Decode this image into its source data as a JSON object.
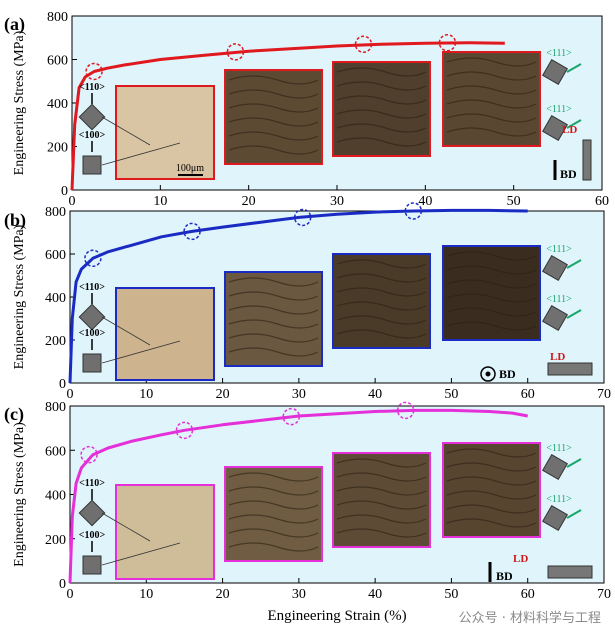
{
  "figure": {
    "xlabel_shared": "Engineering Strain (%)",
    "watermark": "公众号 · 材料科学与工程",
    "colors": {
      "panel_bg": "#dff4fb",
      "axis": "#000000"
    }
  },
  "chart_data": [
    {
      "type": "line",
      "panel_label": "(a)",
      "xlabel": "",
      "ylabel": "Engineering Stress (MPa)",
      "xlim": [
        0,
        60
      ],
      "ylim": [
        0,
        800
      ],
      "xticks": [
        0,
        10,
        20,
        30,
        40,
        50,
        60
      ],
      "yticks": [
        0,
        200,
        400,
        600,
        800
      ],
      "color": "#e0191e",
      "series": [
        {
          "x": [
            0,
            0.3,
            0.8,
            1.5,
            2.5,
            4,
            6,
            10,
            15,
            20,
            25,
            30,
            35,
            40,
            45,
            49
          ],
          "y": [
            0,
            300,
            470,
            520,
            545,
            560,
            575,
            600,
            620,
            638,
            650,
            662,
            670,
            675,
            677,
            675
          ]
        }
      ],
      "markers": [
        {
          "x": 2.5,
          "y": 545
        },
        {
          "x": 18.5,
          "y": 635
        },
        {
          "x": 33,
          "y": 670
        },
        {
          "x": 42.5,
          "y": 677
        }
      ],
      "orientation_labels": [
        "<110>",
        "<100>",
        "<111>",
        "<111>"
      ],
      "loading_labels": [
        "LD",
        "BD"
      ],
      "scale_bar": "100μm",
      "frame_color": "#e0191e"
    },
    {
      "type": "line",
      "panel_label": "(b)",
      "xlabel": "",
      "ylabel": "Engineering Stress (MPa)",
      "xlim": [
        0,
        70
      ],
      "ylim": [
        0,
        800
      ],
      "xticks": [
        0,
        10,
        20,
        30,
        40,
        50,
        60,
        70
      ],
      "yticks": [
        0,
        200,
        400,
        600,
        800
      ],
      "color": "#1a2bc4",
      "series": [
        {
          "x": [
            0,
            0.3,
            0.8,
            1.5,
            3,
            5,
            8,
            12,
            16,
            20,
            25,
            30,
            35,
            40,
            45,
            50,
            55,
            60
          ],
          "y": [
            0,
            300,
            470,
            530,
            580,
            610,
            640,
            680,
            705,
            725,
            748,
            770,
            785,
            795,
            800,
            803,
            803,
            800
          ]
        }
      ],
      "markers": [
        {
          "x": 3,
          "y": 580
        },
        {
          "x": 16,
          "y": 705
        },
        {
          "x": 30.5,
          "y": 770
        },
        {
          "x": 45,
          "y": 800
        }
      ],
      "orientation_labels": [
        "<110>",
        "<100>",
        "<111>",
        "<111>"
      ],
      "loading_labels": [
        "LD",
        "BD"
      ],
      "frame_color": "#1a2bc4"
    },
    {
      "type": "line",
      "panel_label": "(c)",
      "xlabel": "Engineering Strain (%)",
      "ylabel": "Engineering Stress (MPa)",
      "xlim": [
        0,
        70
      ],
      "ylim": [
        0,
        800
      ],
      "xticks": [
        0,
        10,
        20,
        30,
        40,
        50,
        60,
        70
      ],
      "yticks": [
        0,
        200,
        400,
        600,
        800
      ],
      "color": "#e52fd8",
      "series": [
        {
          "x": [
            0,
            0.3,
            0.8,
            1.5,
            3,
            5,
            8,
            12,
            15,
            20,
            25,
            30,
            35,
            40,
            45,
            50,
            55,
            58,
            60
          ],
          "y": [
            0,
            300,
            450,
            520,
            580,
            610,
            640,
            670,
            690,
            715,
            735,
            755,
            765,
            775,
            780,
            780,
            775,
            768,
            755
          ]
        }
      ],
      "markers": [
        {
          "x": 2.5,
          "y": 580
        },
        {
          "x": 15,
          "y": 690
        },
        {
          "x": 29,
          "y": 752
        },
        {
          "x": 44,
          "y": 780
        }
      ],
      "orientation_labels": [
        "<110>",
        "<100>",
        "<111>",
        "<111>"
      ],
      "loading_labels": [
        "LD",
        "BD"
      ],
      "frame_color": "#e52fd8"
    }
  ]
}
